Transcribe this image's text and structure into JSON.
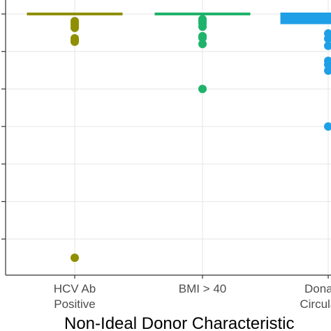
{
  "chart_data": {
    "type": "scatter",
    "subtype": "boxplot-with-points",
    "xlabel": "Non-Ideal Donor Characteristic",
    "ylabel": "",
    "ylim": [
      0.3,
      1.0
    ],
    "grid": true,
    "categories": [
      {
        "lines": [
          "HCV Ab",
          "Positive"
        ],
        "color": "#8f8f00"
      },
      {
        "lines": [
          "BMI > 40"
        ],
        "color": "#1fb36b"
      },
      {
        "lines": [
          "Donation",
          "Circulatory"
        ],
        "color": "#1e9fe6"
      }
    ],
    "series": [
      {
        "box": {
          "q1": 0.999,
          "median": 1.0,
          "q3": 1.0
        },
        "points": [
          0.981,
          0.976,
          0.97,
          0.963,
          0.935,
          0.93,
          0.926,
          0.35
        ]
      },
      {
        "box": {
          "q1": 0.999,
          "median": 1.0,
          "q3": 1.0
        },
        "points": [
          0.986,
          0.98,
          0.974,
          0.966,
          0.941,
          0.936,
          0.92,
          0.8
        ]
      },
      {
        "box": {
          "q1": 0.971,
          "median": 0.985,
          "q3": 1.0
        },
        "points": [
          0.948,
          0.934,
          0.915,
          0.875,
          0.865,
          0.849,
          0.7
        ]
      }
    ]
  }
}
